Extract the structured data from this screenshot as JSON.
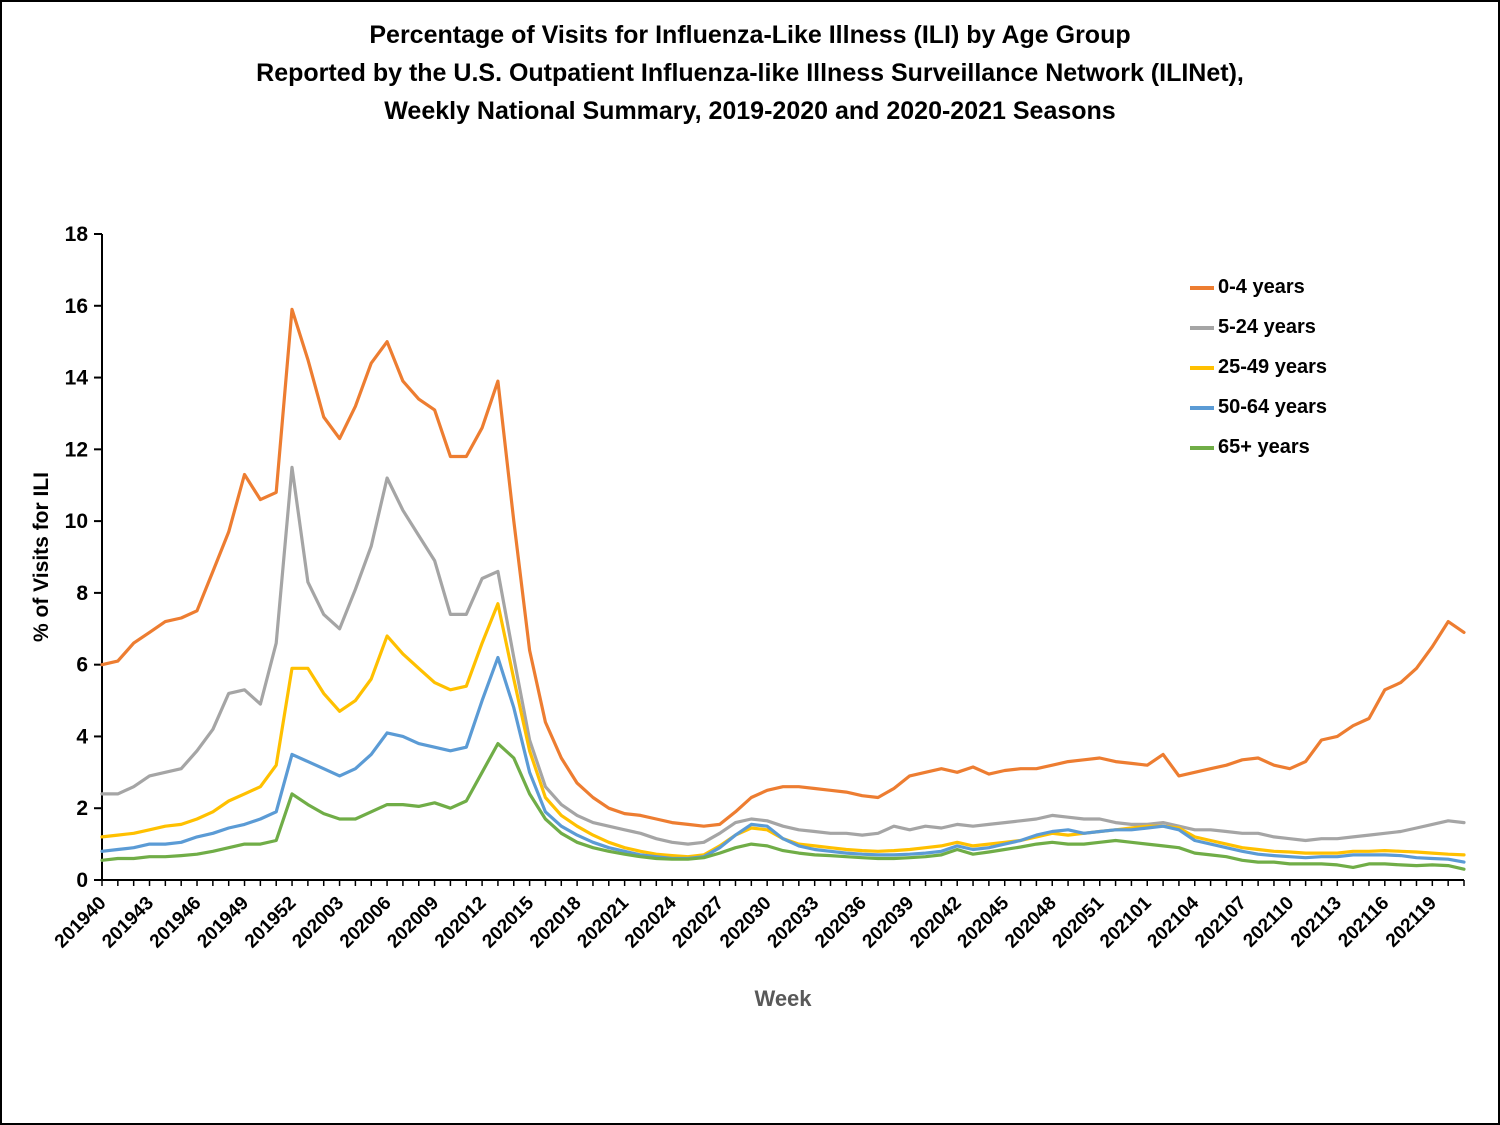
{
  "page": {
    "title_line1": "Percentage of Visits for Influenza-Like Illness (ILI) by Age Group",
    "title_line2": "Reported by the U.S. Outpatient Influenza-like Illness Surveillance Network (ILINet),",
    "title_line3": "Weekly National Summary, 2019-2020 and 2020-2021 Seasons"
  },
  "chart_data": {
    "type": "line",
    "title": "Percentage of Visits for Influenza-Like Illness (ILI) by Age Group Reported by the U.S. Outpatient Influenza-like Illness Surveillance Network (ILINet), Weekly National Summary, 2019-2020 and 2020-2021 Seasons",
    "xlabel": "Week",
    "ylabel": "% of Visits for ILI",
    "ylim": [
      0,
      18
    ],
    "ytick_step": 2,
    "x_label_every": 3,
    "grid": false,
    "legend_position": "upper-right-inside",
    "x": [
      "201940",
      "201941",
      "201942",
      "201943",
      "201944",
      "201945",
      "201946",
      "201947",
      "201948",
      "201949",
      "201950",
      "201951",
      "201952",
      "202001",
      "202002",
      "202003",
      "202004",
      "202005",
      "202006",
      "202007",
      "202008",
      "202009",
      "202010",
      "202011",
      "202012",
      "202013",
      "202014",
      "202015",
      "202016",
      "202017",
      "202018",
      "202019",
      "202020",
      "202021",
      "202022",
      "202023",
      "202024",
      "202025",
      "202026",
      "202027",
      "202028",
      "202029",
      "202030",
      "202031",
      "202032",
      "202033",
      "202034",
      "202035",
      "202036",
      "202037",
      "202038",
      "202039",
      "202040",
      "202041",
      "202042",
      "202043",
      "202044",
      "202045",
      "202046",
      "202047",
      "202048",
      "202049",
      "202050",
      "202051",
      "202052",
      "202053",
      "202101",
      "202102",
      "202103",
      "202104",
      "202105",
      "202106",
      "202107",
      "202108",
      "202109",
      "202110",
      "202111",
      "202112",
      "202113",
      "202114",
      "202115",
      "202116",
      "202117",
      "202118",
      "202119",
      "202120",
      "202121"
    ],
    "series": [
      {
        "name": "0-4 years",
        "color": "#ED7D31",
        "values": [
          6.0,
          6.1,
          6.6,
          6.9,
          7.2,
          7.3,
          7.5,
          8.6,
          9.7,
          11.3,
          10.6,
          10.8,
          15.9,
          14.5,
          12.9,
          12.3,
          13.2,
          14.4,
          15.0,
          13.9,
          13.4,
          13.1,
          11.8,
          11.8,
          12.6,
          13.9,
          10.0,
          6.4,
          4.4,
          3.4,
          2.7,
          2.3,
          2.0,
          1.85,
          1.8,
          1.7,
          1.6,
          1.55,
          1.5,
          1.55,
          1.9,
          2.3,
          2.5,
          2.6,
          2.6,
          2.55,
          2.5,
          2.45,
          2.35,
          2.3,
          2.55,
          2.9,
          3.0,
          3.1,
          3.0,
          3.15,
          2.95,
          3.05,
          3.1,
          3.1,
          3.2,
          3.3,
          3.35,
          3.4,
          3.3,
          3.25,
          3.2,
          3.5,
          2.9,
          3.0,
          3.1,
          3.2,
          3.35,
          3.4,
          3.2,
          3.1,
          3.3,
          3.9,
          4.0,
          4.3,
          4.5,
          5.3,
          5.5,
          5.9,
          6.5,
          7.2,
          6.9
        ]
      },
      {
        "name": "5-24 years",
        "color": "#A5A5A5",
        "values": [
          2.4,
          2.4,
          2.6,
          2.9,
          3.0,
          3.1,
          3.6,
          4.2,
          5.2,
          5.3,
          4.9,
          6.6,
          11.5,
          8.3,
          7.4,
          7.0,
          8.1,
          9.3,
          11.2,
          10.3,
          9.6,
          8.9,
          7.4,
          7.4,
          8.4,
          8.6,
          6.2,
          3.9,
          2.6,
          2.1,
          1.8,
          1.6,
          1.5,
          1.4,
          1.3,
          1.15,
          1.05,
          1.0,
          1.05,
          1.3,
          1.6,
          1.7,
          1.65,
          1.5,
          1.4,
          1.35,
          1.3,
          1.3,
          1.25,
          1.3,
          1.5,
          1.4,
          1.5,
          1.45,
          1.55,
          1.5,
          1.55,
          1.6,
          1.65,
          1.7,
          1.8,
          1.75,
          1.7,
          1.7,
          1.6,
          1.55,
          1.55,
          1.6,
          1.5,
          1.4,
          1.4,
          1.35,
          1.3,
          1.3,
          1.2,
          1.15,
          1.1,
          1.15,
          1.15,
          1.2,
          1.25,
          1.3,
          1.35,
          1.45,
          1.55,
          1.65,
          1.6
        ]
      },
      {
        "name": "25-49 years",
        "color": "#FFC000",
        "values": [
          1.2,
          1.25,
          1.3,
          1.4,
          1.5,
          1.55,
          1.7,
          1.9,
          2.2,
          2.4,
          2.6,
          3.2,
          5.9,
          5.9,
          5.2,
          4.7,
          5.0,
          5.6,
          6.8,
          6.3,
          5.9,
          5.5,
          5.3,
          5.4,
          6.6,
          7.7,
          5.6,
          3.6,
          2.3,
          1.8,
          1.5,
          1.25,
          1.05,
          0.9,
          0.8,
          0.72,
          0.68,
          0.65,
          0.7,
          0.95,
          1.25,
          1.45,
          1.4,
          1.15,
          1.0,
          0.95,
          0.9,
          0.85,
          0.82,
          0.8,
          0.82,
          0.85,
          0.9,
          0.95,
          1.05,
          0.95,
          1.0,
          1.05,
          1.1,
          1.2,
          1.3,
          1.25,
          1.3,
          1.35,
          1.4,
          1.45,
          1.5,
          1.5,
          1.45,
          1.2,
          1.1,
          1.0,
          0.9,
          0.85,
          0.8,
          0.78,
          0.75,
          0.75,
          0.75,
          0.8,
          0.8,
          0.82,
          0.8,
          0.78,
          0.75,
          0.72,
          0.7
        ]
      },
      {
        "name": "50-64 years",
        "color": "#5B9BD5",
        "values": [
          0.8,
          0.85,
          0.9,
          1.0,
          1.0,
          1.05,
          1.2,
          1.3,
          1.45,
          1.55,
          1.7,
          1.9,
          3.5,
          3.3,
          3.1,
          2.9,
          3.1,
          3.5,
          4.1,
          4.0,
          3.8,
          3.7,
          3.6,
          3.7,
          5.0,
          6.2,
          4.8,
          3.0,
          1.9,
          1.5,
          1.25,
          1.05,
          0.9,
          0.8,
          0.7,
          0.65,
          0.6,
          0.6,
          0.65,
          0.9,
          1.25,
          1.55,
          1.5,
          1.15,
          0.95,
          0.85,
          0.8,
          0.75,
          0.72,
          0.7,
          0.7,
          0.72,
          0.75,
          0.8,
          0.95,
          0.85,
          0.9,
          1.0,
          1.1,
          1.25,
          1.35,
          1.4,
          1.3,
          1.35,
          1.4,
          1.4,
          1.45,
          1.5,
          1.4,
          1.1,
          1.0,
          0.9,
          0.8,
          0.72,
          0.68,
          0.65,
          0.62,
          0.65,
          0.65,
          0.7,
          0.7,
          0.7,
          0.68,
          0.62,
          0.6,
          0.58,
          0.5
        ]
      },
      {
        "name": "65+ years",
        "color": "#70AD47",
        "values": [
          0.55,
          0.6,
          0.6,
          0.65,
          0.65,
          0.68,
          0.72,
          0.8,
          0.9,
          1.0,
          1.0,
          1.1,
          2.4,
          2.1,
          1.85,
          1.7,
          1.7,
          1.9,
          2.1,
          2.1,
          2.05,
          2.15,
          2.0,
          2.2,
          3.0,
          3.8,
          3.4,
          2.4,
          1.7,
          1.3,
          1.05,
          0.9,
          0.8,
          0.72,
          0.65,
          0.6,
          0.58,
          0.58,
          0.62,
          0.75,
          0.9,
          1.0,
          0.95,
          0.82,
          0.75,
          0.7,
          0.68,
          0.65,
          0.62,
          0.6,
          0.6,
          0.62,
          0.65,
          0.7,
          0.85,
          0.72,
          0.78,
          0.85,
          0.92,
          1.0,
          1.05,
          1.0,
          1.0,
          1.05,
          1.1,
          1.05,
          1.0,
          0.95,
          0.9,
          0.75,
          0.7,
          0.65,
          0.55,
          0.5,
          0.5,
          0.45,
          0.45,
          0.45,
          0.42,
          0.35,
          0.45,
          0.45,
          0.42,
          0.4,
          0.42,
          0.4,
          0.3
        ]
      }
    ]
  }
}
